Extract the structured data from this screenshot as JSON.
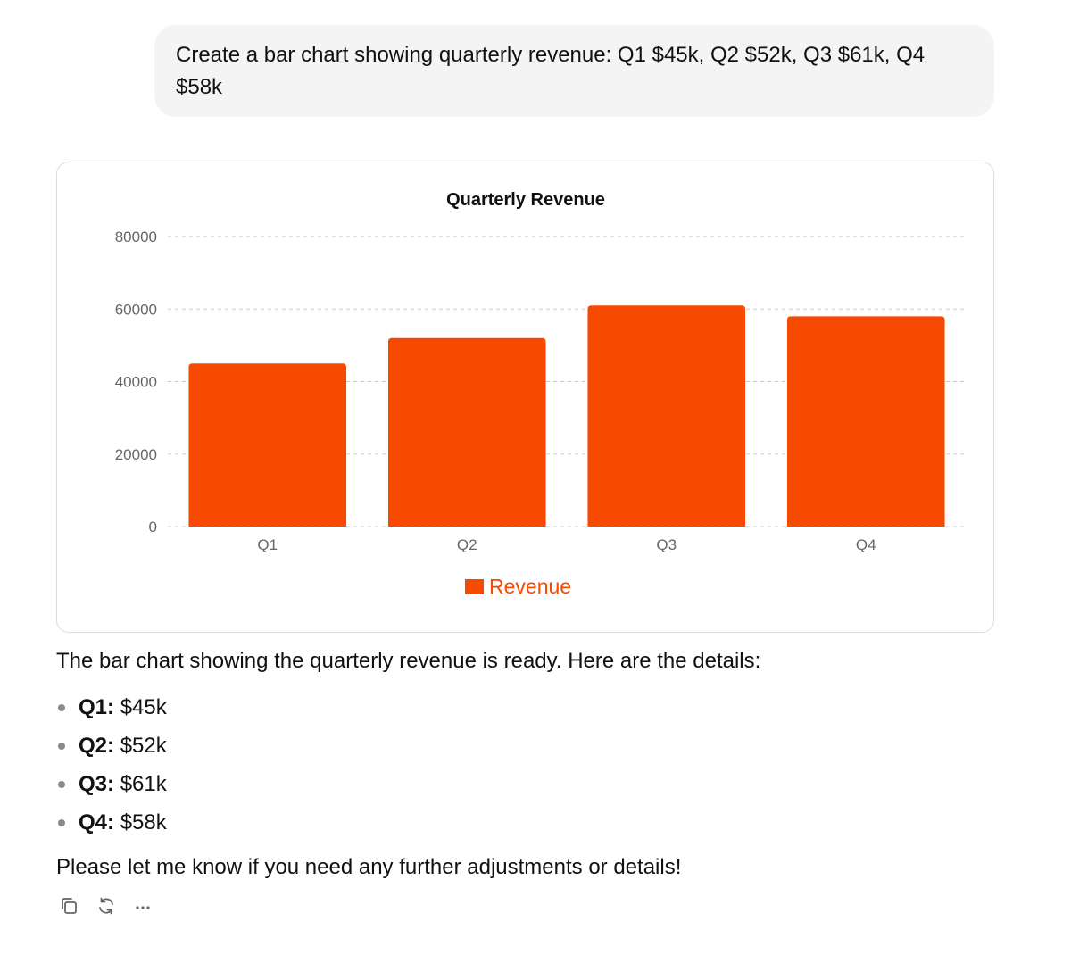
{
  "user_message": {
    "text": "Create a bar chart showing quarterly revenue: Q1 $45k, Q2 $52k, Q3 $61k, Q4 $58k"
  },
  "chart_data": {
    "type": "bar",
    "title": "Quarterly Revenue",
    "categories": [
      "Q1",
      "Q2",
      "Q3",
      "Q4"
    ],
    "series": [
      {
        "name": "Revenue",
        "values": [
          45000,
          52000,
          61000,
          58000
        ],
        "color": "#f54a00"
      }
    ],
    "ylim": [
      0,
      80000
    ],
    "yticks": [
      0,
      20000,
      40000,
      60000,
      80000
    ],
    "xlabel": "",
    "ylabel": "",
    "grid": true,
    "legend_position": "bottom-center"
  },
  "assistant": {
    "intro": "The bar chart showing the quarterly revenue is ready. Here are the details:",
    "items": [
      {
        "label": "Q1:",
        "value": "$45k"
      },
      {
        "label": "Q2:",
        "value": "$52k"
      },
      {
        "label": "Q3:",
        "value": "$61k"
      },
      {
        "label": "Q4:",
        "value": "$58k"
      }
    ],
    "closing": "Please let me know if you need any further adjustments or details!"
  },
  "actions": [
    {
      "icon": "copy-icon"
    },
    {
      "icon": "regenerate-icon"
    },
    {
      "icon": "more-icon"
    }
  ],
  "colors": {
    "accent": "#f54a00",
    "bubble": "#f4f4f4",
    "grid": "#cccccc",
    "tick": "#666666"
  }
}
